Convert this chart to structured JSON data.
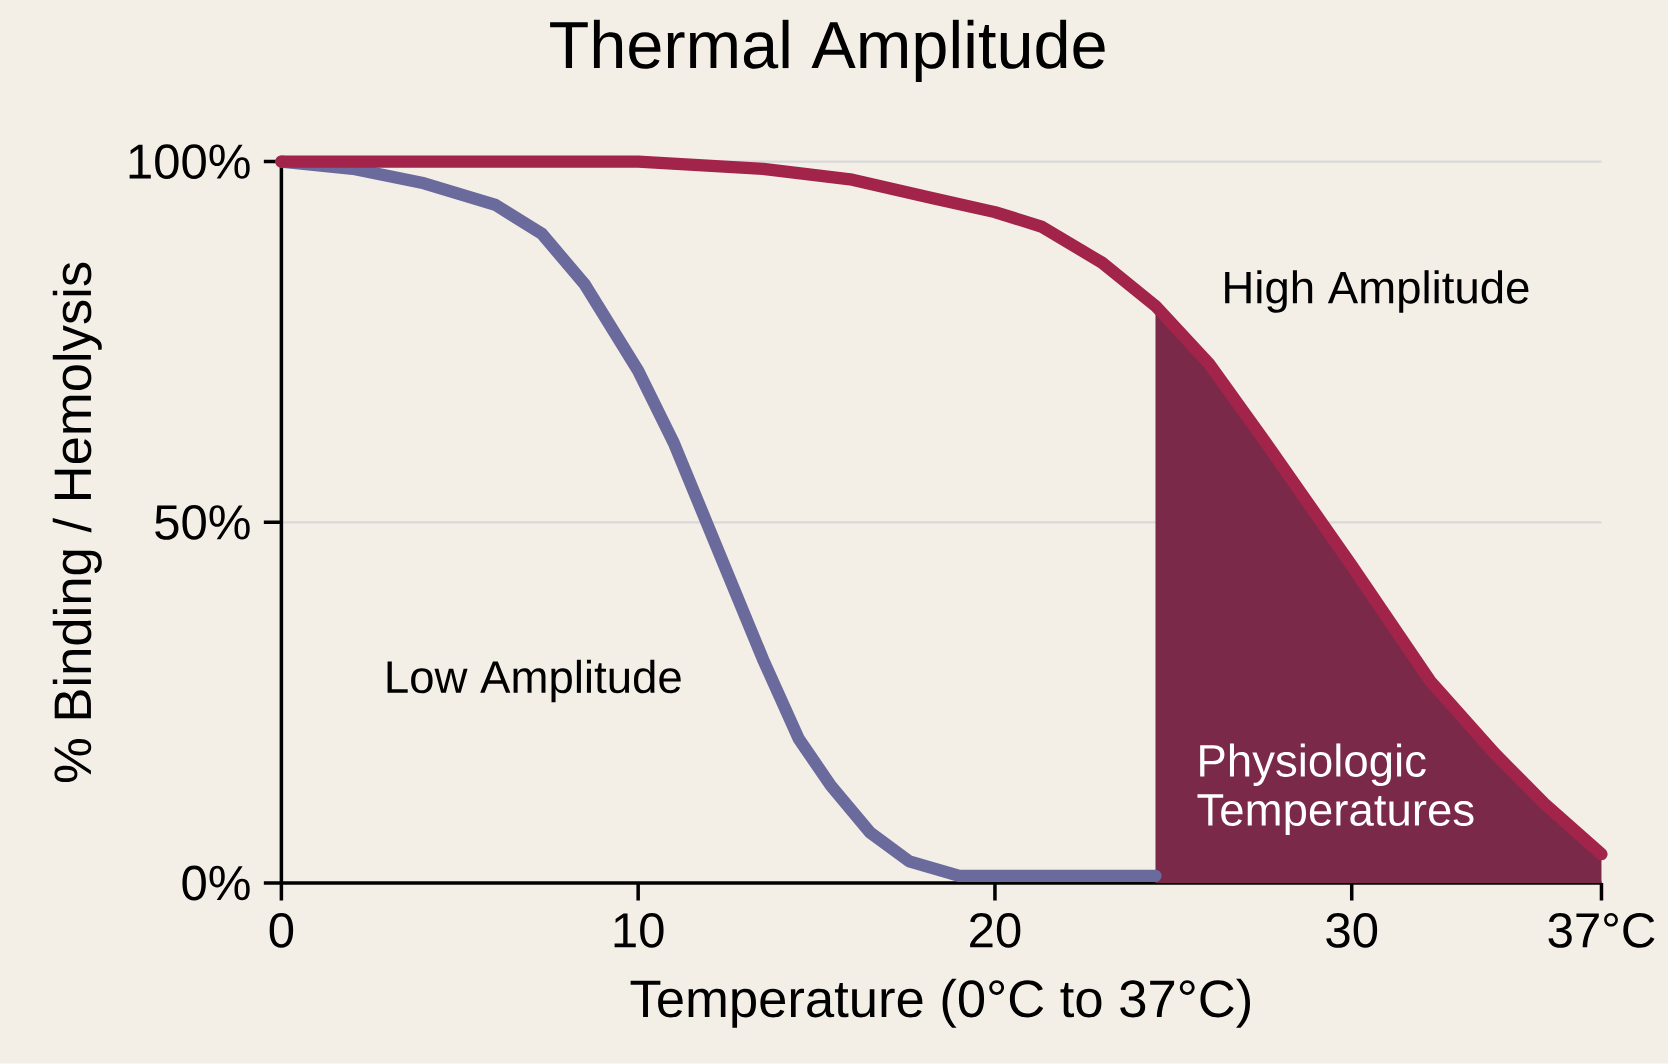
{
  "chart_data": {
    "type": "line",
    "title": "Thermal Amplitude",
    "xlabel": "Temperature (0°C to 37°C)",
    "ylabel": "% Binding / Hemolysis",
    "xlim": [
      0,
      37
    ],
    "ylim": [
      0,
      100
    ],
    "xticks": [
      0,
      10,
      20,
      30,
      {
        "value": 37,
        "label": "37°C"
      }
    ],
    "yticks": [
      {
        "value": 0,
        "label": "0%"
      },
      {
        "value": 50,
        "label": "50%"
      },
      {
        "value": 100,
        "label": "100%"
      }
    ],
    "grid": "y",
    "series": [
      {
        "name": "Physiologic Temperatures",
        "type": "area",
        "color": "#7a2a48",
        "x": [
          24.5,
          25,
          26,
          27,
          27.6,
          28.5,
          30,
          31,
          32.2,
          33.5,
          35.4,
          36.3,
          37
        ],
        "values": [
          80,
          78,
          72,
          65,
          61,
          54,
          44,
          36,
          28,
          20,
          11,
          7,
          4
        ]
      },
      {
        "name": "Low Amplitude",
        "color": "#6b6a9c",
        "x": [
          0,
          2,
          4,
          6,
          7.3,
          8.5,
          10,
          11,
          12,
          13.5,
          14.5,
          15.4,
          16.5,
          17.6,
          19,
          20,
          22,
          24.5
        ],
        "values": [
          100,
          99,
          97,
          94,
          90,
          83,
          71,
          61,
          49,
          31,
          20,
          13.5,
          7,
          3,
          1,
          1,
          1,
          1
        ]
      },
      {
        "name": "High Amplitude",
        "color": "#a3244a",
        "x": [
          0,
          5,
          10,
          13.5,
          16,
          18.2,
          20,
          21.3,
          23,
          24.5,
          26,
          27.6,
          30,
          32.2,
          34,
          35.4,
          37
        ],
        "values": [
          100,
          100,
          100,
          99,
          97.5,
          95,
          93,
          91,
          86,
          80,
          72,
          61,
          44,
          28,
          18,
          11,
          4
        ]
      }
    ]
  }
}
